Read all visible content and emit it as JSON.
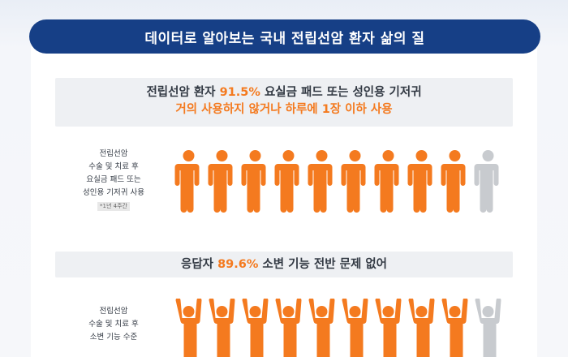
{
  "header": {
    "title": "데이터로 알아보는 국내 전립선암 환자 삶의 질"
  },
  "section1": {
    "line1_prefix": "전립선암 환자 ",
    "line1_highlight": "91.5%",
    "line1_suffix": " 요실금 패드 또는 성인용 기저귀",
    "line2": "거의 사용하지 않거나 하루에 1장 이하 사용",
    "side_label_lines": [
      "전립선암",
      "수술 및 치료 후",
      "요실금 패드 또는",
      "성인용 기저귀 사용"
    ],
    "note": "*1년 4주간",
    "percent_value": 91.5,
    "icons_highlighted": 9,
    "icons_total": 10
  },
  "section2": {
    "prefix": "응답자 ",
    "highlight": "89.6%",
    "suffix": " 소변 기능 전반 문제 없어",
    "side_label_lines": [
      "전립선암",
      "수술 및 치료 후",
      "소변 기능 수준"
    ],
    "percent_value": 89.6,
    "icons_highlighted": 9,
    "icons_total": 10
  },
  "colors": {
    "header_bg": "#163f86",
    "highlight": "#f47a1f",
    "icon_active": "#f47a1f",
    "icon_inactive": "#c8cbcf",
    "banner_bg": "#eef0f3"
  },
  "icons": {
    "person": "person-icon",
    "person_raised": "person-raised-arms-icon"
  }
}
